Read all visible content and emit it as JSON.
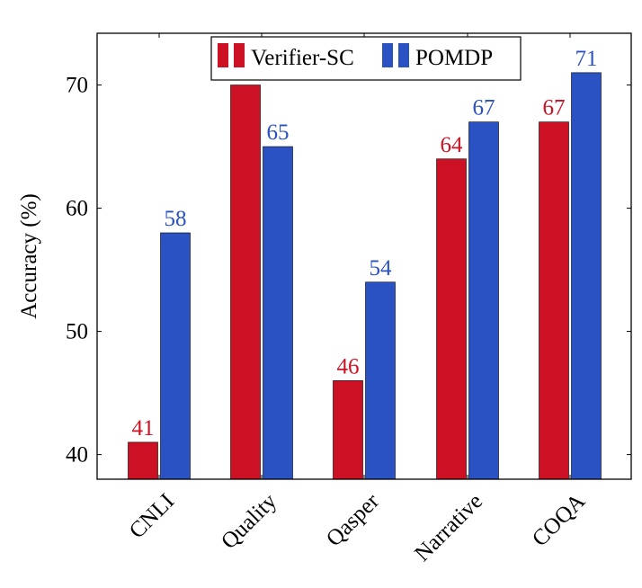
{
  "chart_data": {
    "type": "bar",
    "title": "",
    "xlabel": "",
    "ylabel": "Accuracy (%)",
    "ylim": [
      38,
      74.2
    ],
    "yticks": [
      40,
      50,
      60,
      70
    ],
    "categories": [
      "CNLI",
      "Quality",
      "Qasper",
      "Narrative",
      "COQA"
    ],
    "series": [
      {
        "name": "Verifier-SC",
        "color": "#cc1124",
        "values": [
          41,
          70,
          46,
          64,
          67
        ],
        "labels": [
          "41",
          "",
          "46",
          "64",
          "67"
        ]
      },
      {
        "name": "POMDP",
        "color": "#2b52c2",
        "values": [
          58,
          65,
          54,
          67,
          71
        ],
        "labels": [
          "58",
          "65",
          "54",
          "67",
          "71"
        ]
      }
    ],
    "legend": "top-right",
    "grid": false
  }
}
